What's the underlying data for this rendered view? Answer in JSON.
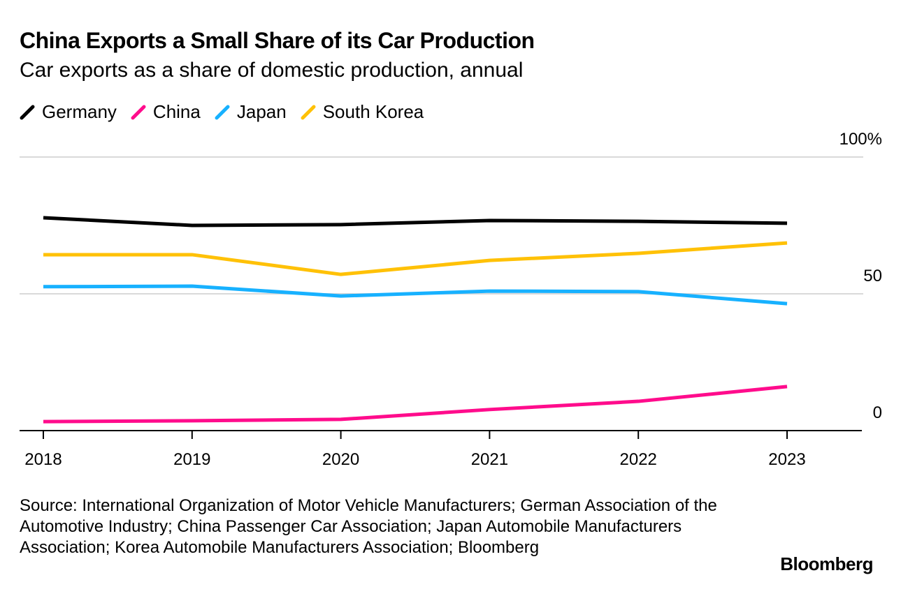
{
  "header": {
    "title": "China Exports a Small Share of its Car Production",
    "subtitle": "Car exports as a share of domestic production, annual"
  },
  "footer": {
    "source": "Source: International Organization of Motor Vehicle Manufacturers; German Association of the Automotive Industry; China Passenger Car Association; Japan Automobile Manufacturers Association; Korea Automobile Manufacturers Association; Bloomberg",
    "logo": "Bloomberg"
  },
  "chart_data": {
    "type": "line",
    "title": "China Exports a Small Share of its Car Production",
    "subtitle": "Car exports as a share of domestic production, annual",
    "x": [
      "2018",
      "2019",
      "2020",
      "2021",
      "2022",
      "2023"
    ],
    "ylim": [
      0,
      100
    ],
    "yticks": [
      0,
      50,
      100
    ],
    "ytick_labels": [
      "0",
      "50",
      "100%"
    ],
    "grid": true,
    "legend": "top-left",
    "series": [
      {
        "name": "Germany",
        "color": "#000000",
        "values": [
          77.8,
          75.0,
          75.3,
          76.8,
          76.5,
          75.8
        ]
      },
      {
        "name": "China",
        "color": "#ff0c8c",
        "values": [
          3.3,
          3.6,
          4.1,
          7.7,
          10.7,
          16.1
        ]
      },
      {
        "name": "Japan",
        "color": "#17b1ff",
        "values": [
          52.6,
          52.8,
          49.2,
          51.0,
          50.8,
          46.4
        ]
      },
      {
        "name": "South Korea",
        "color": "#ffc107",
        "values": [
          64.3,
          64.3,
          57.1,
          62.2,
          64.8,
          68.6
        ]
      }
    ]
  }
}
